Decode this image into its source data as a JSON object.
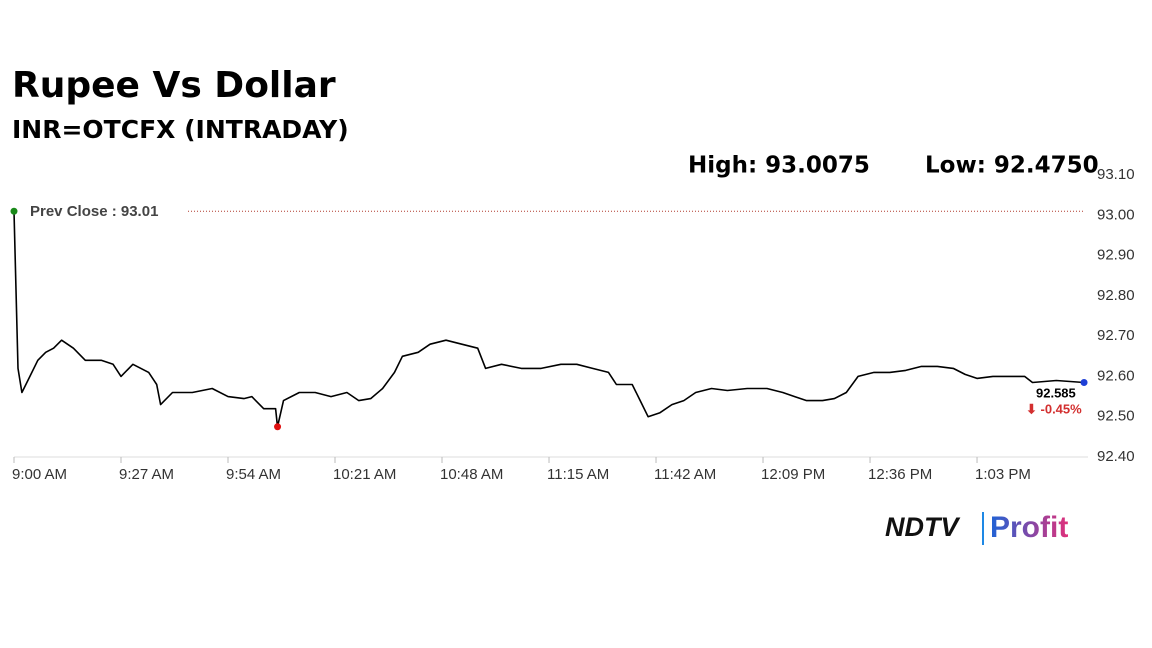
{
  "chart_data": {
    "type": "line",
    "title": "Rupee Vs Dollar",
    "subtitle": "INR=OTCFX (INTRADAY)",
    "high_label": "High: 93.0075",
    "low_label": "Low: 92.4750",
    "prev_close": {
      "value": 93.01,
      "label": "Prev Close : 93.01",
      "color": "#b03a2e"
    },
    "last_label": "92.585",
    "change_label": "⬇ -0.45%",
    "brand": "NDTV",
    "brand_sub": "Profit",
    "color": "#000000",
    "x": [
      540,
      541,
      542,
      544,
      546,
      548,
      550,
      552,
      555,
      558,
      562,
      565,
      567,
      570,
      574,
      576,
      577,
      580,
      585,
      590,
      594,
      598,
      600,
      603,
      606,
      606.5,
      608,
      612,
      616,
      620,
      624,
      627,
      630,
      633,
      636,
      638,
      642,
      645,
      649,
      653,
      657,
      659,
      663,
      668,
      673,
      678,
      682,
      686,
      690,
      692,
      696,
      698,
      700,
      703,
      706,
      709,
      712,
      716,
      720,
      725,
      730,
      734,
      737,
      740,
      744,
      747,
      750,
      753,
      757,
      761,
      765,
      769,
      773,
      777,
      780,
      783,
      787,
      791,
      795,
      797,
      803,
      810
    ],
    "values": [
      93.01,
      92.62,
      92.56,
      92.6,
      92.64,
      92.66,
      92.67,
      92.69,
      92.67,
      92.64,
      92.64,
      92.63,
      92.6,
      92.63,
      92.61,
      92.58,
      92.53,
      92.56,
      92.56,
      92.57,
      92.55,
      92.545,
      92.55,
      92.52,
      92.52,
      92.475,
      92.54,
      92.56,
      92.56,
      92.55,
      92.56,
      92.54,
      92.545,
      92.57,
      92.61,
      92.65,
      92.66,
      92.68,
      92.69,
      92.68,
      92.67,
      92.62,
      92.63,
      92.62,
      92.62,
      92.63,
      92.63,
      92.62,
      92.61,
      92.58,
      92.58,
      92.54,
      92.5,
      92.51,
      92.53,
      92.54,
      92.56,
      92.57,
      92.565,
      92.57,
      92.57,
      92.56,
      92.55,
      92.54,
      92.54,
      92.545,
      92.56,
      92.6,
      92.61,
      92.61,
      92.615,
      92.625,
      92.625,
      92.62,
      92.605,
      92.595,
      92.6,
      92.6,
      92.6,
      92.585,
      92.59,
      92.585
    ],
    "xlim": [
      540,
      811
    ],
    "ylim": [
      92.4,
      93.1
    ],
    "yticks": [
      {
        "value": 92.4,
        "label": "92.40"
      },
      {
        "value": 92.5,
        "label": "92.50"
      },
      {
        "value": 92.6,
        "label": "92.60"
      },
      {
        "value": 92.7,
        "label": "92.70"
      },
      {
        "value": 92.8,
        "label": "92.80"
      },
      {
        "value": 92.9,
        "label": "92.90"
      },
      {
        "value": 93.0,
        "label": "93.00"
      },
      {
        "value": 93.1,
        "label": "93.10"
      }
    ],
    "xticks": [
      {
        "value": 540,
        "label": "9:00 AM"
      },
      {
        "value": 567,
        "label": "9:27 AM"
      },
      {
        "value": 594,
        "label": "9:54 AM"
      },
      {
        "value": 621,
        "label": "10:21 AM"
      },
      {
        "value": 648,
        "label": "10:48 AM"
      },
      {
        "value": 675,
        "label": "11:15 AM"
      },
      {
        "value": 702,
        "label": "11:42 AM"
      },
      {
        "value": 729,
        "label": "12:09 PM"
      },
      {
        "value": 756,
        "label": "12:36 PM"
      },
      {
        "value": 783,
        "label": "1:03 PM"
      }
    ]
  }
}
